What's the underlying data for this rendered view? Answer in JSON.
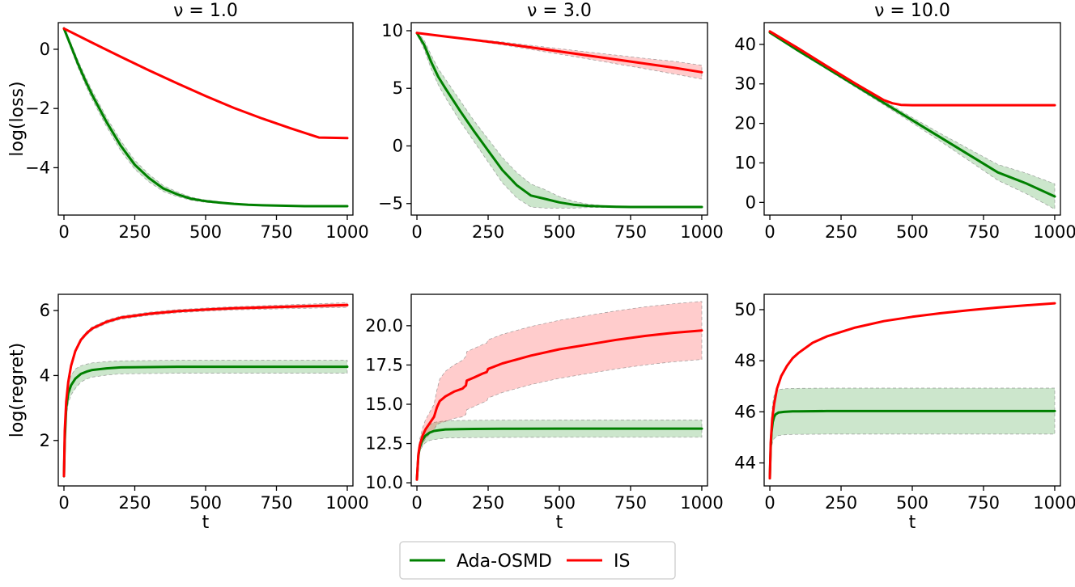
{
  "colors": {
    "ada": "#008000",
    "is": "#ff0000",
    "ada_band": "#008000",
    "is_band": "#ff0000"
  },
  "legend": [
    {
      "name": "Ada-OSMD",
      "color": "#008000"
    },
    {
      "name": "IS",
      "color": "#ff0000"
    }
  ],
  "chart_data": [
    {
      "type": "line",
      "title": "ν = 1.0",
      "xlabel": "",
      "ylabel": "log(loss)",
      "xlim": [
        -20,
        1020
      ],
      "ylim": [
        -5.6,
        0.9
      ],
      "xticks": [
        0,
        250,
        500,
        750,
        1000
      ],
      "yticks": [
        -4,
        -2,
        0
      ],
      "ytick_labels": [
        "−4",
        "−2",
        "0"
      ],
      "series": [
        {
          "name": "Ada-OSMD",
          "x": [
            0,
            25,
            50,
            75,
            100,
            150,
            200,
            250,
            300,
            350,
            400,
            450,
            500,
            550,
            600,
            650,
            700,
            750,
            800,
            850,
            900,
            950,
            1000
          ],
          "y": [
            0.7,
            0.1,
            -0.5,
            -1.05,
            -1.55,
            -2.45,
            -3.25,
            -3.9,
            -4.35,
            -4.7,
            -4.9,
            -5.05,
            -5.13,
            -5.18,
            -5.22,
            -5.25,
            -5.27,
            -5.28,
            -5.29,
            -5.3,
            -5.3,
            -5.3,
            -5.3
          ],
          "band": [
            0.06,
            0.1,
            0.12,
            0.14,
            0.15,
            0.16,
            0.17,
            0.15,
            0.13,
            0.1,
            0.08,
            0.05,
            0.04,
            0.03,
            0.02,
            0.02,
            0.02,
            0.02,
            0.02,
            0.02,
            0.02,
            0.02,
            0.02
          ]
        },
        {
          "name": "IS",
          "x": [
            0,
            100,
            200,
            300,
            400,
            500,
            600,
            700,
            800,
            900,
            1000
          ],
          "y": [
            0.7,
            0.22,
            -0.25,
            -0.71,
            -1.15,
            -1.58,
            -1.98,
            -2.34,
            -2.67,
            -2.98,
            -3.0
          ],
          "band": [
            0.02,
            0.02,
            0.02,
            0.02,
            0.02,
            0.02,
            0.02,
            0.02,
            0.02,
            0.02,
            0.02
          ]
        }
      ]
    },
    {
      "type": "line",
      "title": "ν = 3.0",
      "xlabel": "",
      "ylabel": "",
      "xlim": [
        -20,
        1020
      ],
      "ylim": [
        -6.0,
        10.7
      ],
      "xticks": [
        0,
        250,
        500,
        750,
        1000
      ],
      "yticks": [
        -5,
        0,
        5,
        10
      ],
      "ytick_labels": [
        "−5",
        "0",
        "5",
        "10"
      ],
      "series": [
        {
          "name": "Ada-OSMD",
          "x": [
            0,
            25,
            50,
            75,
            100,
            150,
            200,
            250,
            300,
            350,
            400,
            450,
            500,
            550,
            600,
            650,
            700,
            750,
            800,
            850,
            900,
            950,
            1000
          ],
          "y": [
            9.8,
            8.8,
            7.3,
            6.0,
            5.0,
            3.1,
            1.3,
            -0.4,
            -2.1,
            -3.4,
            -4.3,
            -4.6,
            -4.9,
            -5.1,
            -5.2,
            -5.25,
            -5.28,
            -5.3,
            -5.3,
            -5.3,
            -5.3,
            -5.3,
            -5.3
          ],
          "band": [
            0.1,
            0.4,
            0.6,
            0.7,
            0.8,
            0.9,
            0.9,
            1.0,
            1.1,
            1.1,
            1.0,
            0.8,
            0.5,
            0.3,
            0.15,
            0.08,
            0.05,
            0.03,
            0.03,
            0.03,
            0.03,
            0.03,
            0.03
          ]
        },
        {
          "name": "IS",
          "x": [
            0,
            100,
            200,
            300,
            400,
            500,
            600,
            700,
            800,
            900,
            1000
          ],
          "y": [
            9.8,
            9.5,
            9.2,
            8.9,
            8.55,
            8.2,
            7.85,
            7.5,
            7.15,
            6.8,
            6.4
          ],
          "band": [
            0.02,
            0.04,
            0.07,
            0.12,
            0.18,
            0.24,
            0.3,
            0.38,
            0.45,
            0.55,
            0.6
          ]
        }
      ]
    },
    {
      "type": "line",
      "title": "ν = 10.0",
      "xlabel": "",
      "ylabel": "",
      "xlim": [
        -20,
        1020
      ],
      "ylim": [
        -3.2,
        45.5
      ],
      "xticks": [
        0,
        250,
        500,
        750,
        1000
      ],
      "yticks": [
        0,
        10,
        20,
        30,
        40
      ],
      "ytick_labels": [
        "0",
        "10",
        "20",
        "30",
        "40"
      ],
      "series": [
        {
          "name": "Ada-OSMD",
          "x": [
            0,
            100,
            200,
            300,
            400,
            500,
            600,
            700,
            800,
            900,
            1000
          ],
          "y": [
            43.0,
            38.4,
            34.0,
            29.6,
            25.2,
            20.8,
            16.4,
            12.0,
            7.6,
            4.8,
            1.5
          ],
          "band": [
            0.2,
            0.3,
            0.3,
            0.4,
            0.5,
            0.7,
            1.0,
            1.5,
            2.0,
            2.6,
            3.2
          ]
        },
        {
          "name": "IS",
          "x": [
            0,
            100,
            200,
            300,
            400,
            430,
            460,
            500,
            600,
            700,
            800,
            900,
            1000
          ],
          "y": [
            43.3,
            39.0,
            34.5,
            30.1,
            25.9,
            25.1,
            24.7,
            24.6,
            24.6,
            24.6,
            24.6,
            24.6,
            24.6
          ],
          "band": [
            0.1,
            0.1,
            0.1,
            0.1,
            0.1,
            0.1,
            0.1,
            0.1,
            0.1,
            0.1,
            0.1,
            0.1,
            0.1
          ]
        }
      ]
    },
    {
      "type": "line",
      "title": "",
      "xlabel": "t",
      "ylabel": "log(regret)",
      "xlim": [
        -20,
        1020
      ],
      "ylim": [
        0.6,
        6.5
      ],
      "xticks": [
        0,
        250,
        500,
        750,
        1000
      ],
      "yticks": [
        2,
        4,
        6
      ],
      "ytick_labels": [
        "2",
        "4",
        "6"
      ],
      "series": [
        {
          "name": "Ada-OSMD",
          "x": [
            0,
            3,
            8,
            15,
            25,
            40,
            60,
            80,
            100,
            150,
            200,
            300,
            400,
            500,
            600,
            800,
            1000
          ],
          "y": [
            0.9,
            2.0,
            3.0,
            3.45,
            3.7,
            3.9,
            4.05,
            4.12,
            4.17,
            4.22,
            4.25,
            4.26,
            4.27,
            4.27,
            4.27,
            4.27,
            4.27
          ],
          "band": [
            0.05,
            0.2,
            0.3,
            0.3,
            0.3,
            0.3,
            0.25,
            0.23,
            0.22,
            0.21,
            0.2,
            0.2,
            0.2,
            0.2,
            0.2,
            0.2,
            0.2
          ]
        },
        {
          "name": "IS",
          "x": [
            0,
            3,
            8,
            15,
            25,
            40,
            60,
            80,
            100,
            150,
            200,
            300,
            400,
            500,
            600,
            800,
            1000
          ],
          "y": [
            0.9,
            2.3,
            3.2,
            3.8,
            4.3,
            4.75,
            5.1,
            5.3,
            5.45,
            5.65,
            5.78,
            5.9,
            5.98,
            6.03,
            6.07,
            6.12,
            6.17
          ],
          "band": [
            0.02,
            0.05,
            0.05,
            0.05,
            0.05,
            0.05,
            0.05,
            0.05,
            0.05,
            0.05,
            0.05,
            0.05,
            0.05,
            0.05,
            0.05,
            0.06,
            0.07
          ]
        }
      ]
    },
    {
      "type": "line",
      "title": "",
      "xlabel": "t",
      "ylabel": "",
      "xlim": [
        -20,
        1020
      ],
      "ylim": [
        9.8,
        22.0
      ],
      "xticks": [
        0,
        250,
        500,
        750,
        1000
      ],
      "yticks": [
        10.0,
        12.5,
        15.0,
        17.5,
        20.0
      ],
      "ytick_labels": [
        "10.0",
        "12.5",
        "15.0",
        "17.5",
        "20.0"
      ],
      "series": [
        {
          "name": "Ada-OSMD",
          "x": [
            0,
            5,
            10,
            20,
            30,
            45,
            60,
            80,
            100,
            150,
            200,
            300,
            500,
            700,
            1000
          ],
          "y": [
            10.2,
            11.7,
            12.3,
            12.75,
            13.0,
            13.2,
            13.3,
            13.35,
            13.4,
            13.42,
            13.43,
            13.44,
            13.45,
            13.45,
            13.45
          ],
          "band": [
            0.05,
            0.2,
            0.3,
            0.4,
            0.45,
            0.5,
            0.55,
            0.55,
            0.55,
            0.55,
            0.55,
            0.55,
            0.55,
            0.55,
            0.55
          ]
        },
        {
          "name": "IS",
          "x": [
            0,
            5,
            10,
            20,
            30,
            45,
            60,
            70,
            80,
            100,
            130,
            160,
            172,
            175,
            200,
            230,
            245,
            250,
            300,
            400,
            500,
            600,
            700,
            800,
            900,
            1000
          ],
          "y": [
            10.2,
            11.8,
            12.4,
            13.0,
            13.4,
            13.8,
            14.2,
            14.8,
            15.2,
            15.5,
            15.8,
            16.0,
            16.2,
            16.5,
            16.7,
            16.95,
            17.05,
            17.25,
            17.6,
            18.1,
            18.5,
            18.8,
            19.1,
            19.35,
            19.55,
            19.7
          ],
          "band": [
            0.05,
            0.3,
            0.4,
            0.5,
            0.6,
            0.7,
            0.8,
            1.1,
            1.4,
            1.6,
            1.7,
            1.8,
            1.85,
            1.85,
            1.85,
            1.85,
            1.85,
            1.85,
            1.85,
            1.85,
            1.85,
            1.85,
            1.85,
            1.85,
            1.85,
            1.85
          ]
        }
      ]
    },
    {
      "type": "line",
      "title": "",
      "xlabel": "t",
      "ylabel": "",
      "xlim": [
        -20,
        1020
      ],
      "ylim": [
        43.1,
        50.6
      ],
      "xticks": [
        0,
        250,
        500,
        750,
        1000
      ],
      "yticks": [
        44,
        46,
        48,
        50
      ],
      "ytick_labels": [
        "44",
        "46",
        "48",
        "50"
      ],
      "series": [
        {
          "name": "Ada-OSMD",
          "x": [
            0,
            3,
            6,
            10,
            15,
            20,
            30,
            50,
            80,
            100,
            200,
            400,
            600,
            800,
            1000
          ],
          "y": [
            43.4,
            44.6,
            45.2,
            45.6,
            45.8,
            45.9,
            45.97,
            46.0,
            46.02,
            46.02,
            46.03,
            46.03,
            46.03,
            46.03,
            46.03
          ],
          "band": [
            0.05,
            0.4,
            0.6,
            0.75,
            0.85,
            0.9,
            0.9,
            0.9,
            0.9,
            0.9,
            0.9,
            0.9,
            0.9,
            0.9,
            0.9
          ]
        },
        {
          "name": "IS",
          "x": [
            0,
            3,
            8,
            15,
            25,
            40,
            60,
            80,
            100,
            150,
            200,
            300,
            400,
            500,
            600,
            700,
            800,
            900,
            1000
          ],
          "y": [
            43.4,
            44.8,
            45.7,
            46.3,
            46.9,
            47.4,
            47.8,
            48.1,
            48.3,
            48.7,
            48.95,
            49.3,
            49.55,
            49.72,
            49.86,
            49.98,
            50.08,
            50.17,
            50.25
          ],
          "band": [
            0.01,
            0.01,
            0.01,
            0.01,
            0.01,
            0.01,
            0.01,
            0.01,
            0.01,
            0.01,
            0.01,
            0.01,
            0.01,
            0.01,
            0.01,
            0.01,
            0.01,
            0.01,
            0.01
          ]
        }
      ]
    }
  ]
}
